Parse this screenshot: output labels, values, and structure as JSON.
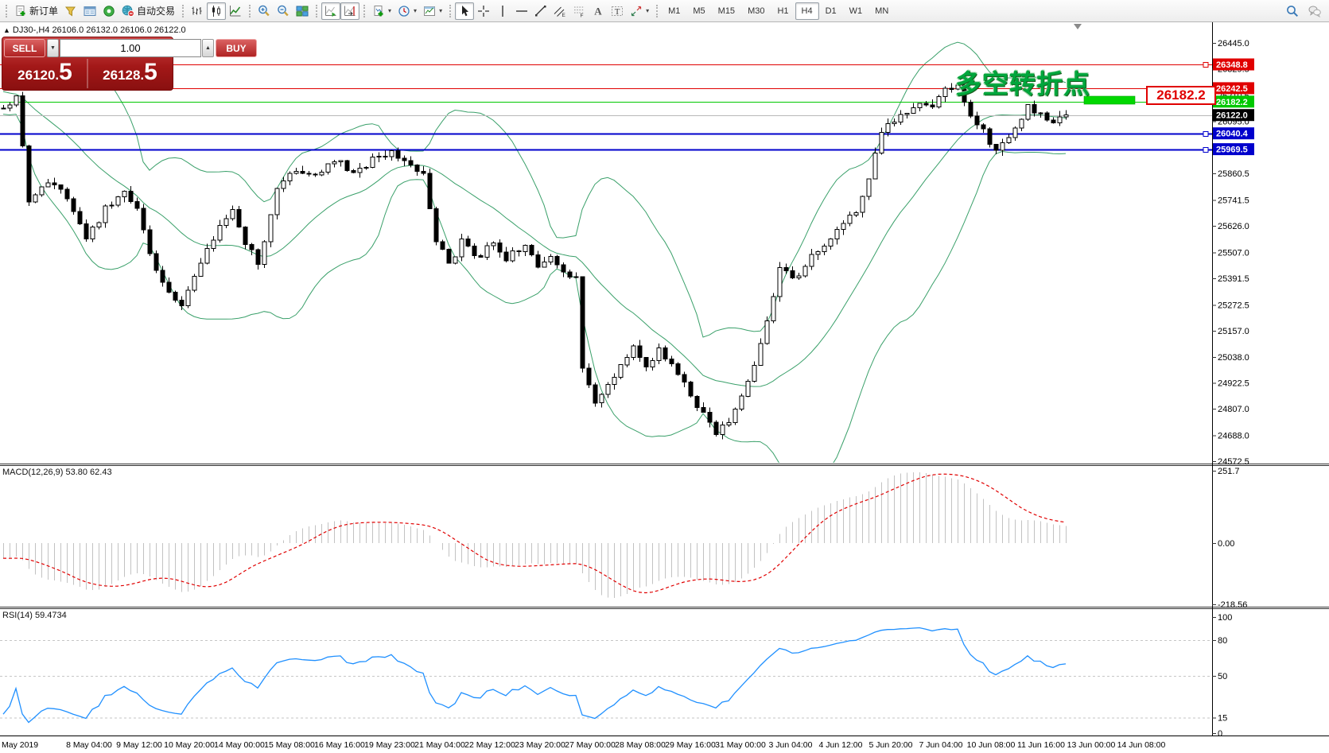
{
  "toolbar": {
    "groups": [
      {
        "items": [
          {
            "icon": "new-order",
            "label": "新订单"
          },
          {
            "icon": "new-chart"
          },
          {
            "icon": "market-watch"
          },
          {
            "icon": "navigator"
          },
          {
            "icon": "autotrading",
            "label": "自动交易"
          }
        ]
      },
      {
        "items": [
          {
            "icon": "bar-chart"
          },
          {
            "icon": "candlestick",
            "active": true
          },
          {
            "icon": "line-chart"
          }
        ]
      },
      {
        "items": [
          {
            "icon": "zoom-in"
          },
          {
            "icon": "zoom-out"
          },
          {
            "icon": "tile-windows"
          }
        ]
      },
      {
        "items": [
          {
            "icon": "auto-scroll",
            "active": true
          },
          {
            "icon": "chart-shift",
            "active": true
          }
        ]
      },
      {
        "items": [
          {
            "icon": "indicators",
            "dropdown": true
          },
          {
            "icon": "periods",
            "dropdown": true
          },
          {
            "icon": "templates",
            "dropdown": true
          }
        ]
      },
      {
        "items": [
          {
            "icon": "cursor",
            "active": true
          },
          {
            "icon": "crosshair"
          },
          {
            "icon": "vertical-line"
          },
          {
            "icon": "horizontal-line"
          },
          {
            "icon": "trendline"
          },
          {
            "icon": "equidistant-channel"
          },
          {
            "icon": "fibonacci"
          },
          {
            "icon": "text"
          },
          {
            "icon": "text-label"
          },
          {
            "icon": "arrows",
            "dropdown": true
          }
        ]
      },
      {
        "items": [
          {
            "text": "M1"
          },
          {
            "text": "M5"
          },
          {
            "text": "M15"
          },
          {
            "text": "M30"
          },
          {
            "text": "H1"
          },
          {
            "text": "H4",
            "active": true
          },
          {
            "text": "D1"
          },
          {
            "text": "W1"
          },
          {
            "text": "MN"
          }
        ]
      }
    ],
    "right_items": [
      {
        "icon": "search"
      },
      {
        "icon": "chat"
      }
    ]
  },
  "chart": {
    "symbol_marker": "▲",
    "symbol_info": "DJ30-,H4  26106.0 26132.0 26106.0 26122.0",
    "trade_panel": {
      "sell_label": "SELL",
      "buy_label": "BUY",
      "volume": "1.00",
      "step_down": "▼",
      "step_up": "▲",
      "sell_price": "26120.5",
      "buy_price": "26128.5"
    },
    "annotation": {
      "text": "多空转折点",
      "color": "#00a63c"
    },
    "callout": {
      "value": "26182.2",
      "color": "#e00000"
    }
  },
  "macd": {
    "label": "MACD(12,26,9) 53.80 62.43"
  },
  "rsi": {
    "label": "RSI(14) 59.4734"
  },
  "chart_data": {
    "type": "candlestick",
    "symbol": "DJ30-",
    "timeframe": "H4",
    "bars_count": 168,
    "bar_spacing_px": 8,
    "last_close": 26122.0,
    "current_ohlc": {
      "open": 26106.0,
      "high": 26132.0,
      "low": 26106.0,
      "close": 26122.0
    },
    "price_keyframes": [
      [
        0,
        26140
      ],
      [
        2,
        26215
      ],
      [
        4,
        25745
      ],
      [
        7,
        25820
      ],
      [
        10,
        25760
      ],
      [
        13,
        25560
      ],
      [
        16,
        25700
      ],
      [
        19,
        25795
      ],
      [
        21,
        25700
      ],
      [
        23,
        25505
      ],
      [
        26,
        25315
      ],
      [
        28,
        25280
      ],
      [
        30,
        25400
      ],
      [
        33,
        25575
      ],
      [
        36,
        25690
      ],
      [
        38,
        25560
      ],
      [
        40,
        25455
      ],
      [
        43,
        25785
      ],
      [
        46,
        25875
      ],
      [
        49,
        25840
      ],
      [
        52,
        25925
      ],
      [
        55,
        25865
      ],
      [
        58,
        25925
      ],
      [
        61,
        25965
      ],
      [
        64,
        25890
      ],
      [
        66,
        25860
      ],
      [
        68,
        25565
      ],
      [
        70,
        25445
      ],
      [
        72,
        25560
      ],
      [
        75,
        25485
      ],
      [
        77,
        25560
      ],
      [
        79,
        25485
      ],
      [
        82,
        25545
      ],
      [
        84,
        25445
      ],
      [
        86,
        25500
      ],
      [
        88,
        25425
      ],
      [
        90,
        25385
      ],
      [
        91,
        24990
      ],
      [
        93,
        24840
      ],
      [
        96,
        24960
      ],
      [
        99,
        25095
      ],
      [
        101,
        25005
      ],
      [
        103,
        25065
      ],
      [
        106,
        24960
      ],
      [
        108,
        24860
      ],
      [
        110,
        24790
      ],
      [
        112,
        24700
      ],
      [
        114,
        24760
      ],
      [
        116,
        24880
      ],
      [
        118,
        25000
      ],
      [
        120,
        25200
      ],
      [
        122,
        25450
      ],
      [
        124,
        25385
      ],
      [
        126,
        25445
      ],
      [
        128,
        25525
      ],
      [
        130,
        25565
      ],
      [
        132,
        25630
      ],
      [
        134,
        25690
      ],
      [
        136,
        25850
      ],
      [
        138,
        26060
      ],
      [
        140,
        26090
      ],
      [
        142,
        26140
      ],
      [
        144,
        26185
      ],
      [
        146,
        26165
      ],
      [
        148,
        26235
      ],
      [
        150,
        26250
      ],
      [
        152,
        26105
      ],
      [
        154,
        26050
      ],
      [
        156,
        25965
      ],
      [
        158,
        26015
      ],
      [
        160,
        26120
      ],
      [
        161,
        26160
      ],
      [
        163,
        26120
      ],
      [
        165,
        26085
      ],
      [
        167,
        26122
      ]
    ],
    "overlays": {
      "bollinger": {
        "period": 20,
        "deviation": 2,
        "color": "#3aa06a"
      }
    },
    "y_axis": {
      "min": 24572.5,
      "max": 26445.0,
      "ticks": [
        "26445.0",
        "26329.5",
        "26210.5",
        "26095.0",
        "25860.5",
        "25741.5",
        "25626.0",
        "25507.0",
        "25391.5",
        "25272.5",
        "25157.0",
        "25038.0",
        "24922.5",
        "24807.0",
        "24688.0",
        "24572.5"
      ]
    },
    "h_lines": [
      {
        "price": 26348.8,
        "label": "26348.8",
        "color": "#e00000",
        "badge_bg": "#e00000",
        "marker": true
      },
      {
        "price": 26242.5,
        "label": "26242.5",
        "color": "#e00000",
        "badge_bg": "#e00000",
        "marker": true
      },
      {
        "price": 26182.2,
        "label": "26182.2",
        "color": "#00c800",
        "badge_bg": "#00c800",
        "marker": true
      },
      {
        "price": 26122.0,
        "label": "26122.0",
        "color": "#b8b8b8",
        "badge_bg": "#000000",
        "marker": false
      },
      {
        "price": 26040.4,
        "label": "26040.4",
        "color": "#0000cc",
        "badge_bg": "#0000cc",
        "marker": true
      },
      {
        "price": 25969.5,
        "label": "25969.5",
        "color": "#0000cc",
        "badge_bg": "#0000cc",
        "marker": true
      }
    ],
    "highlight_rect": {
      "price": 26182.2,
      "color": "#00d800"
    },
    "indicators": [
      {
        "name": "MACD",
        "params": "12,26,9",
        "main_value": 53.8,
        "signal_value": 62.43,
        "histogram_color": "#c2c2c2",
        "signal_color": "#e00000",
        "scale": [
          {
            "v": 251.7,
            "label": "251.7"
          },
          {
            "v": 0,
            "label": "0.00"
          },
          {
            "v": -218.56,
            "label": "-218.56"
          }
        ]
      },
      {
        "name": "RSI",
        "params": "14",
        "value": 59.4734,
        "color": "#2090ff",
        "levels": [
          80,
          50,
          15
        ],
        "scale": [
          {
            "v": 100,
            "label": "100"
          },
          {
            "v": 80,
            "label": "80"
          },
          {
            "v": 50,
            "label": "50"
          },
          {
            "v": 15,
            "label": "15"
          },
          {
            "v": 0,
            "label": "0"
          }
        ]
      }
    ],
    "x_axis_labels": [
      "May 2019",
      "8 May 04:00",
      "9 May 12:00",
      "10 May 20:00",
      "14 May 00:00",
      "15 May 08:00",
      "16 May 16:00",
      "19 May 23:00",
      "21 May 04:00",
      "22 May 12:00",
      "23 May 20:00",
      "27 May 00:00",
      "28 May 08:00",
      "29 May 16:00",
      "31 May 00:00",
      "3 Jun 04:00",
      "4 Jun 12:00",
      "5 Jun 20:00",
      "7 Jun 04:00",
      "10 Jun 08:00",
      "11 Jun 16:00",
      "13 Jun 00:00",
      "14 Jun 08:00"
    ]
  }
}
